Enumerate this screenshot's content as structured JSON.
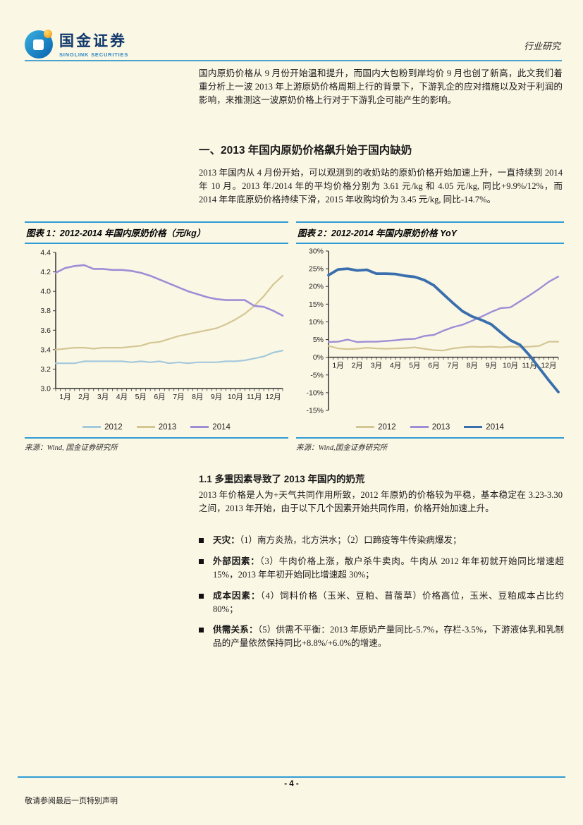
{
  "page": {
    "bg_color": "#FBF7E5",
    "accent_blue": "#2F9CD6"
  },
  "header": {
    "logo_cn": "国金证券",
    "logo_en": "SINOLINK SECURITIES",
    "report_type": "行业研究"
  },
  "intro": "国内原奶价格从 9 月份开始温和提升，而国内大包粉到岸均价 9 月也创了新高，此文我们着重分析上一波 2013 年上游原奶价格周期上行的背景下，下游乳企的应对措施以及对于利润的影响，来推测这一波原奶价格上行对于下游乳企可能产生的影响。",
  "section1": {
    "title": "一、2013 年国内原奶价格飙升始于国内缺奶",
    "para": "2013 年国内从 4 月份开始，可以观测到的收奶站的原奶价格开始加速上升，一直持续到 2014 年 10 月。2013 年/2014 年的平均价格分别为 3.61 元/kg 和 4.05 元/kg, 同比+9.9%/12%，而 2014 年年底原奶价格持续下滑，2015 年收购均价为 3.45 元/kg, 同比-14.7%。"
  },
  "section11": {
    "title": "1.1 多重因素导致了 2013 年国内的奶荒",
    "para": "2013 年价格是人为+天气共同作用所致，2012 年原奶的价格较为平稳，基本稳定在 3.23-3.30 之间，2013 年开始，由于以下几个因素开始共同作用，价格开始加速上升。",
    "bullets": [
      {
        "term": "天灾：",
        "text": "（1）南方炎热，北方洪水；（2）口蹄疫等牛传染病爆发；"
      },
      {
        "term": "外部因素：",
        "text": "（3）牛肉价格上涨，散户杀牛卖肉。牛肉从 2012 年年初就开始同比增速超15%，2013 年年初开始同比增速超 30%；"
      },
      {
        "term": "成本因素：",
        "text": "（4）饲料价格（玉米、豆粕、苜蓿草）价格高位，玉米、豆粕成本占比约 80%；"
      },
      {
        "term": "供需关系：",
        "text": "（5）供需不平衡：2013 年原奶产量同比-5.7%，存栏-3.5%，下游液体乳和乳制品的产量依然保持同比+8.8%/+6.0%的增速。"
      }
    ]
  },
  "footer": {
    "page_number": "- 4 -",
    "disclaimer": "敬请参阅最后一页特别声明"
  },
  "chart_data": [
    {
      "type": "line",
      "title": "图表 1：2012-2014 年国内原奶价格（元/kg）",
      "source": "来源：Wind, 国金证券研究所",
      "categories": [
        "1月",
        "2月",
        "3月",
        "4月",
        "5月",
        "6月",
        "7月",
        "8月",
        "9月",
        "10月",
        "11月",
        "12月"
      ],
      "xlabel": "",
      "ylabel": "",
      "ylim": [
        3.0,
        4.4
      ],
      "ystep": 0.2,
      "ytick_format": "number",
      "axis_at": 3.0,
      "grid": false,
      "legend_position": "bottom",
      "series": [
        {
          "name": "2012",
          "color": "#A3C9DC",
          "width": 2.2,
          "values": [
            3.26,
            3.26,
            3.26,
            3.28,
            3.28,
            3.28,
            3.28,
            3.28,
            3.27,
            3.28,
            3.27,
            3.28,
            3.26,
            3.27,
            3.26,
            3.27,
            3.27,
            3.27,
            3.28,
            3.28,
            3.29,
            3.31,
            3.33,
            3.37,
            3.39
          ]
        },
        {
          "name": "2013",
          "color": "#D4C693",
          "width": 2.2,
          "values": [
            3.4,
            3.41,
            3.42,
            3.42,
            3.41,
            3.42,
            3.42,
            3.42,
            3.43,
            3.44,
            3.47,
            3.48,
            3.51,
            3.54,
            3.56,
            3.58,
            3.6,
            3.62,
            3.66,
            3.71,
            3.77,
            3.85,
            3.95,
            4.07,
            4.16
          ]
        },
        {
          "name": "2014",
          "color": "#9D8ED6",
          "width": 2.6,
          "values": [
            4.19,
            4.24,
            4.26,
            4.27,
            4.23,
            4.23,
            4.22,
            4.22,
            4.21,
            4.19,
            4.16,
            4.12,
            4.08,
            4.04,
            4.0,
            3.97,
            3.94,
            3.92,
            3.91,
            3.91,
            3.91,
            3.85,
            3.84,
            3.8,
            3.75
          ]
        }
      ]
    },
    {
      "type": "line",
      "title": "图表 2：2012-2014 年国内原奶价格 YoY",
      "source": "来源：Wind,国金证券研究所",
      "categories": [
        "1月",
        "2月",
        "3月",
        "4月",
        "5月",
        "6月",
        "7月",
        "8月",
        "9月",
        "10月",
        "11月",
        "12月"
      ],
      "xlabel": "",
      "ylabel": "",
      "ylim": [
        -15,
        30
      ],
      "ystep": 5,
      "ytick_format": "percent",
      "axis_at": 0,
      "grid": false,
      "legend_position": "bottom",
      "series": [
        {
          "name": "2012",
          "color": "#D4C693",
          "width": 2.2,
          "values": [
            3.2,
            2.5,
            2.3,
            2.4,
            2.7,
            2.5,
            2.4,
            2.5,
            2.6,
            2.8,
            2.4,
            2.0,
            1.9,
            2.5,
            2.8,
            3.0,
            2.9,
            3.0,
            2.8,
            3.0,
            2.9,
            3.0,
            3.2,
            4.4,
            4.4
          ]
        },
        {
          "name": "2013",
          "color": "#9D8ED6",
          "width": 2.4,
          "values": [
            4.3,
            4.4,
            5.0,
            4.3,
            4.4,
            4.4,
            4.6,
            4.8,
            5.1,
            5.2,
            6.0,
            6.3,
            7.5,
            8.5,
            9.2,
            10.3,
            11.5,
            12.8,
            13.9,
            14.1,
            15.8,
            17.5,
            19.3,
            21.3,
            22.8
          ]
        },
        {
          "name": "2014",
          "color": "#3A6FAD",
          "width": 3.8,
          "values": [
            23.2,
            24.8,
            25.0,
            24.5,
            24.7,
            23.6,
            23.6,
            23.5,
            23.0,
            22.7,
            21.8,
            20.3,
            17.8,
            15.3,
            13.0,
            11.5,
            10.5,
            9.3,
            7.0,
            4.8,
            3.5,
            0.5,
            -3.0,
            -6.5,
            -9.8
          ]
        }
      ]
    }
  ]
}
